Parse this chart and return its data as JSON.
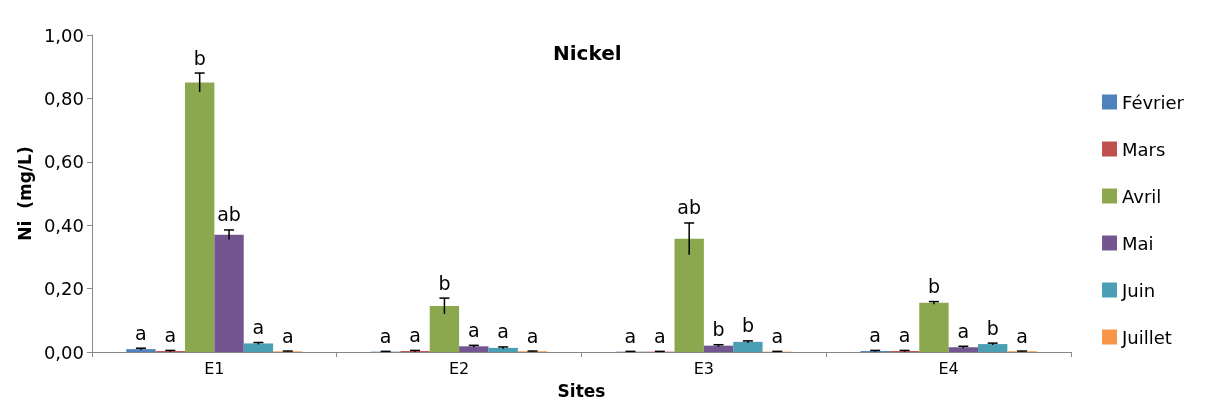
{
  "chart_data": {
    "type": "bar",
    "title": "Nickel",
    "xlabel": "Sites",
    "ylabel": "Ni  (mg/L)",
    "categories": [
      "E1",
      "E2",
      "E3",
      "E4"
    ],
    "ylim": [
      0,
      1
    ],
    "yticks": [
      {
        "value": 0,
        "label": "0,00"
      },
      {
        "value": 0.2,
        "label": "0,20"
      },
      {
        "value": 0.4,
        "label": "0,40"
      },
      {
        "value": 0.6,
        "label": "0,60"
      },
      {
        "value": 0.8,
        "label": "0,80"
      },
      {
        "value": 1,
        "label": "1,00"
      }
    ],
    "grid": false,
    "legend": "right",
    "series": [
      {
        "name": "Février",
        "color": "#4f81bd",
        "values": [
          0.009,
          0.001,
          0.001,
          0.003
        ],
        "errors": [
          0.003,
          0.001,
          0.001,
          0.002
        ],
        "value_labels": [
          "a",
          "a",
          "a",
          "a"
        ]
      },
      {
        "name": "Mars",
        "color": "#c0504d",
        "values": [
          0.003,
          0.003,
          0.001,
          0.003
        ],
        "errors": [
          0.002,
          0.002,
          0.001,
          0.002
        ],
        "value_labels": [
          "a",
          "a",
          "a",
          "a"
        ]
      },
      {
        "name": "Avril",
        "color": "#8ba84f",
        "values": [
          0.85,
          0.145,
          0.357,
          0.155
        ],
        "errors": [
          0.03,
          0.025,
          0.05,
          0.004
        ],
        "value_labels": [
          "b",
          "b",
          "ab",
          "b"
        ]
      },
      {
        "name": "Mai",
        "color": "#735590",
        "values": [
          0.37,
          0.018,
          0.02,
          0.015
        ],
        "errors": [
          0.015,
          0.003,
          0.003,
          0.003
        ],
        "value_labels": [
          "ab",
          "a",
          "b",
          "a"
        ]
      },
      {
        "name": "Juin",
        "color": "#4a9fb5",
        "values": [
          0.027,
          0.013,
          0.032,
          0.025
        ],
        "errors": [
          0.003,
          0.003,
          0.003,
          0.003
        ],
        "value_labels": [
          "a",
          "a",
          "b",
          "b"
        ]
      },
      {
        "name": "Juillet",
        "color": "#f79646",
        "values": [
          0.002,
          0.002,
          0.001,
          0.002
        ],
        "errors": [
          0.001,
          0.001,
          0.001,
          0.001
        ],
        "value_labels": [
          "a",
          "a",
          "a",
          "a"
        ]
      }
    ]
  }
}
